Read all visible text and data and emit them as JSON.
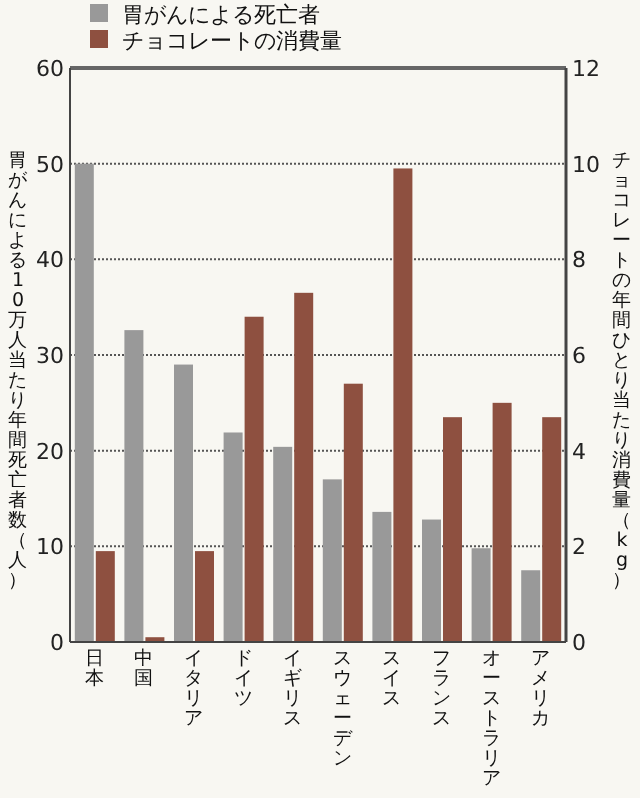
{
  "chart_data": {
    "type": "bar",
    "ylabel": "胃がんによる10万人当たり年間死亡者数（人）",
    "y2label": "チョコレートの年間ひとり当たり消費量（kg）",
    "categories": [
      "日本",
      "中国",
      "イタリア",
      "ドイツ",
      "イギリス",
      "スウェーデン",
      "スイス",
      "フランス",
      "オーストラリア",
      "アメリカ"
    ],
    "series": [
      {
        "name": "胃がんによる死亡者",
        "color": "#999999",
        "values": [
          50,
          32.6,
          29.0,
          21.9,
          20.4,
          17.0,
          13.6,
          12.8,
          9.8,
          7.5
        ]
      },
      {
        "name": "チョコレートの消費量",
        "color": "#8e5040",
        "axis": "y2",
        "values": [
          1.9,
          0.1,
          1.9,
          6.8,
          7.3,
          5.4,
          9.9,
          4.7,
          5.0,
          4.7
        ]
      }
    ],
    "ylim": [
      0,
      60
    ],
    "yticks": [
      0,
      10,
      20,
      30,
      40,
      50,
      60
    ],
    "y2lim": [
      0,
      12
    ],
    "y2ticks": [
      0,
      2,
      4,
      6,
      8,
      10,
      12
    ],
    "grid": "y",
    "legend": "top left"
  }
}
